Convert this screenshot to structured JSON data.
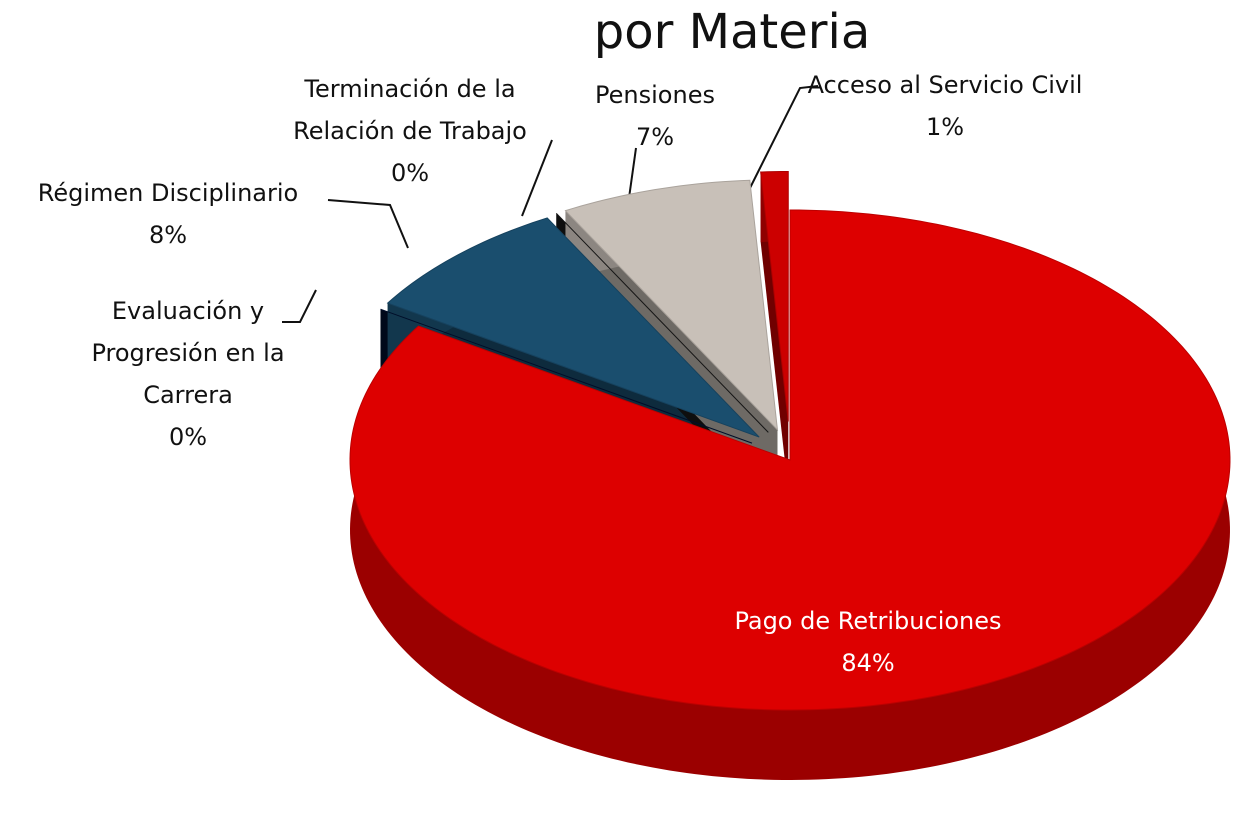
{
  "chart_data": {
    "type": "pie",
    "title": "por Materia",
    "categories": [
      "Pago de Retribuciones",
      "Evaluación y Progresión en la Carrera",
      "Régimen Disciplinario",
      "Terminación de la Relación de Trabajo",
      "Pensiones",
      "Acceso al Servicio Civil"
    ],
    "values": [
      84,
      0,
      8,
      0,
      7,
      1
    ],
    "value_labels": [
      "84%",
      "0%",
      "8%",
      "0%",
      "7%",
      "1%"
    ],
    "colors": [
      "#dd0000",
      "#001030",
      "#1a4e6e",
      "#1a1a1a",
      "#c8c0b8",
      "#cc0000"
    ]
  }
}
